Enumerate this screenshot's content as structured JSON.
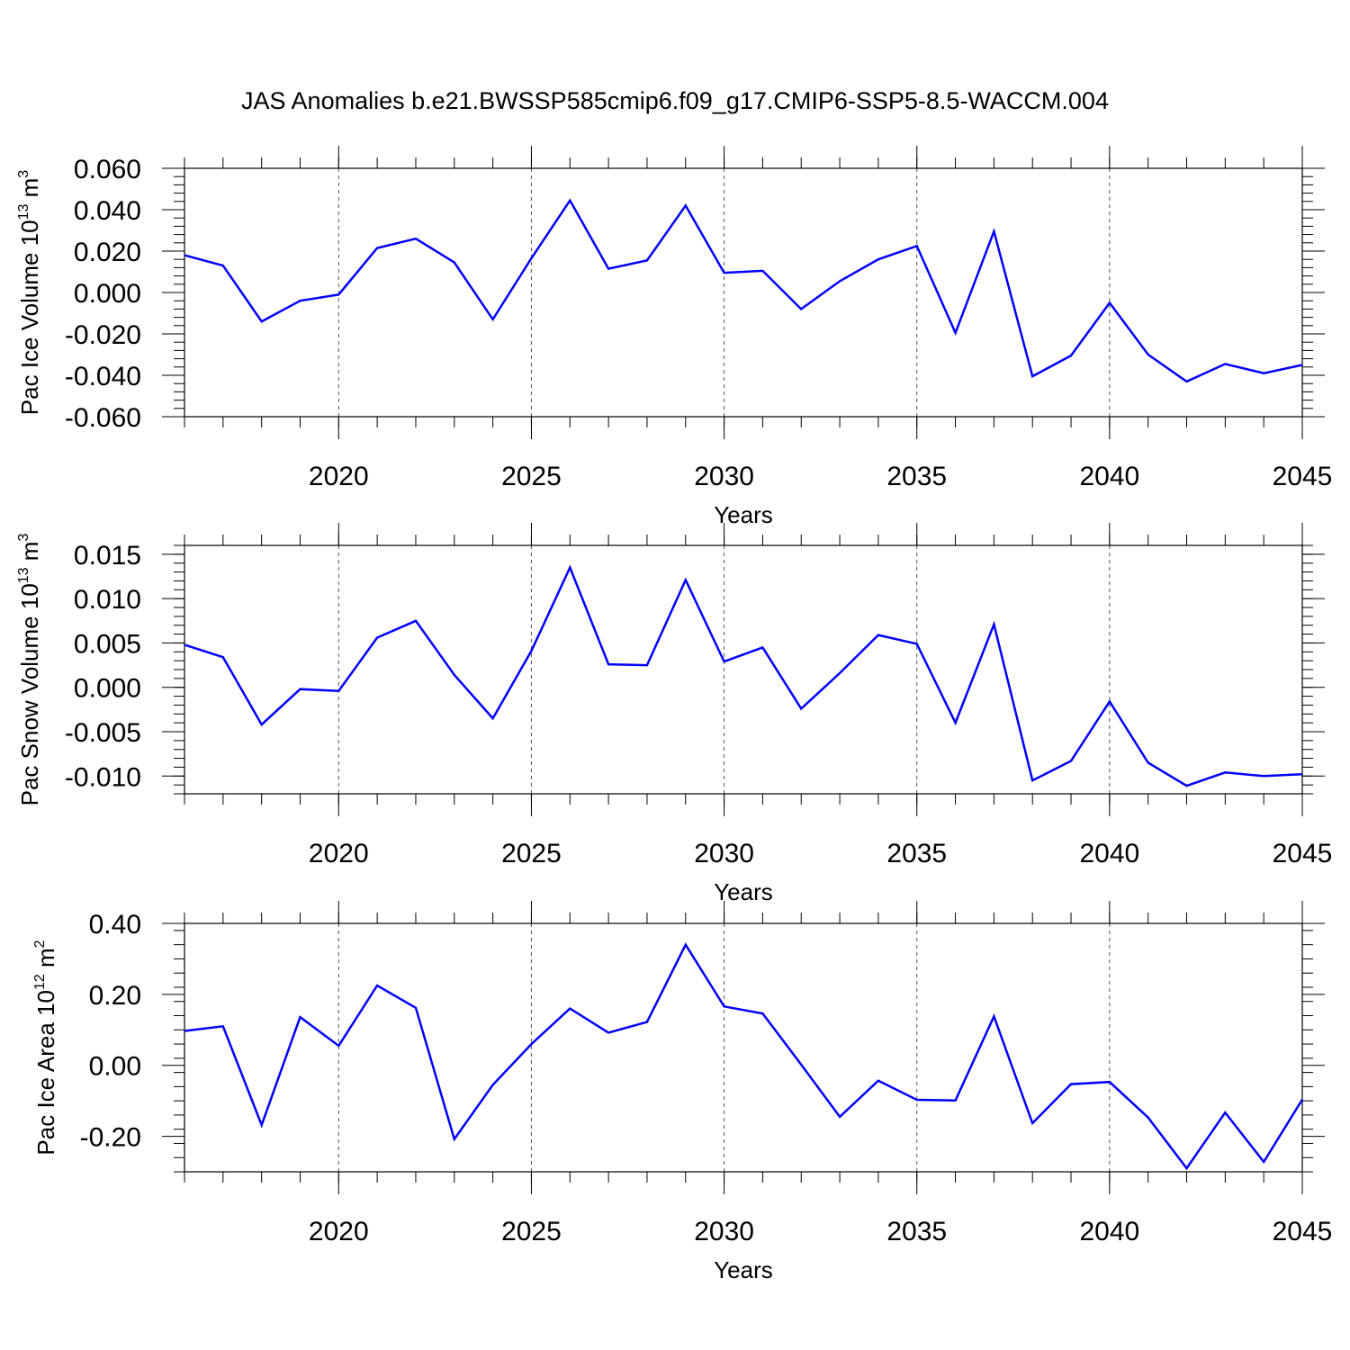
{
  "title": "JAS Anomalies b.e21.BWSSP585cmip6.f09_g17.CMIP6-SSP5-8.5-WACCM.004",
  "colors": {
    "line": "#0000ff",
    "axis": "#000000",
    "grid": "#555555"
  },
  "chart_data": [
    {
      "type": "line",
      "ylabel": "Pac Ice Volume 10",
      "ylabel_exp": "13",
      "ylabel_unit": " m",
      "ylabel_unit_exp": "3",
      "xlabel": "Years",
      "xlim": [
        2016,
        2045
      ],
      "ylim": [
        -0.06,
        0.06
      ],
      "yticks": [
        -0.06,
        -0.04,
        -0.02,
        0.0,
        0.02,
        0.04,
        0.06
      ],
      "ytick_labels": [
        "-0.060",
        "-0.040",
        "-0.020",
        "0.000",
        "0.020",
        "0.040",
        "0.060"
      ],
      "xticks": [
        2020,
        2025,
        2030,
        2035,
        2040,
        2045
      ],
      "xtick_labels": [
        "2020",
        "2025",
        "2030",
        "2035",
        "2040",
        "2045"
      ],
      "grid": "vertical dashed at major x ticks",
      "x": [
        2016,
        2017,
        2018,
        2019,
        2020,
        2021,
        2022,
        2023,
        2024,
        2025,
        2026,
        2027,
        2028,
        2029,
        2030,
        2031,
        2032,
        2033,
        2034,
        2035,
        2036,
        2037,
        2038,
        2039,
        2040,
        2041,
        2042,
        2043,
        2044,
        2045
      ],
      "values": [
        0.018,
        0.013,
        -0.014,
        -0.004,
        -0.001,
        0.0215,
        0.026,
        0.0145,
        -0.013,
        0.0165,
        0.0445,
        0.0115,
        0.0155,
        0.042,
        0.0095,
        0.0105,
        -0.008,
        0.0055,
        0.016,
        0.0225,
        -0.0195,
        0.0295,
        -0.0405,
        -0.0305,
        -0.005,
        -0.03,
        -0.043,
        -0.0345,
        -0.039,
        -0.035
      ]
    },
    {
      "type": "line",
      "ylabel": "Pac Snow Volume 10",
      "ylabel_exp": "13",
      "ylabel_unit": " m",
      "ylabel_unit_exp": "3",
      "xlabel": "Years",
      "xlim": [
        2016,
        2045
      ],
      "ylim": [
        -0.012,
        0.016
      ],
      "yticks": [
        -0.01,
        -0.005,
        0.0,
        0.005,
        0.01,
        0.015
      ],
      "ytick_labels": [
        "-0.010",
        "-0.005",
        "0.000",
        "0.005",
        "0.010",
        "0.015"
      ],
      "xticks": [
        2020,
        2025,
        2030,
        2035,
        2040,
        2045
      ],
      "xtick_labels": [
        "2020",
        "2025",
        "2030",
        "2035",
        "2040",
        "2045"
      ],
      "grid": "vertical dashed at major x ticks",
      "x": [
        2016,
        2017,
        2018,
        2019,
        2020,
        2021,
        2022,
        2023,
        2024,
        2025,
        2026,
        2027,
        2028,
        2029,
        2030,
        2031,
        2032,
        2033,
        2034,
        2035,
        2036,
        2037,
        2038,
        2039,
        2040,
        2041,
        2042,
        2043,
        2044,
        2045
      ],
      "values": [
        0.0048,
        0.0034,
        -0.0042,
        -0.0002,
        -0.0004,
        0.0056,
        0.0075,
        0.0014,
        -0.0035,
        0.0041,
        0.0135,
        0.0026,
        0.0025,
        0.0121,
        0.0029,
        0.0045,
        -0.0024,
        0.0016,
        0.0059,
        0.0049,
        -0.004,
        0.0071,
        -0.0105,
        -0.0083,
        -0.0016,
        -0.0085,
        -0.0111,
        -0.0096,
        -0.01,
        -0.0098
      ]
    },
    {
      "type": "line",
      "ylabel": "Pac Ice Area 10",
      "ylabel_exp": "12",
      "ylabel_unit": " m",
      "ylabel_unit_exp": "2",
      "xlabel": "Years",
      "xlim": [
        2016,
        2045
      ],
      "ylim": [
        -0.3,
        0.4
      ],
      "yticks": [
        -0.2,
        0.0,
        0.2,
        0.4
      ],
      "ytick_labels": [
        "-0.20",
        "0.00",
        "0.20",
        "0.40"
      ],
      "xticks": [
        2020,
        2025,
        2030,
        2035,
        2040,
        2045
      ],
      "xtick_labels": [
        "2020",
        "2025",
        "2030",
        "2035",
        "2040",
        "2045"
      ],
      "grid": "vertical dashed at major x ticks",
      "x": [
        2016,
        2017,
        2018,
        2019,
        2020,
        2021,
        2022,
        2023,
        2024,
        2025,
        2026,
        2027,
        2028,
        2029,
        2030,
        2031,
        2032,
        2033,
        2034,
        2035,
        2036,
        2037,
        2038,
        2039,
        2040,
        2041,
        2042,
        2043,
        2044,
        2045
      ],
      "values": [
        0.097,
        0.11,
        -0.168,
        0.136,
        0.055,
        0.225,
        0.162,
        -0.208,
        -0.055,
        0.06,
        0.16,
        0.092,
        0.122,
        0.34,
        0.166,
        0.146,
        0.002,
        -0.145,
        -0.043,
        -0.097,
        -0.099,
        0.138,
        -0.163,
        -0.053,
        -0.047,
        -0.147,
        -0.29,
        -0.133,
        -0.272,
        -0.096
      ]
    }
  ]
}
